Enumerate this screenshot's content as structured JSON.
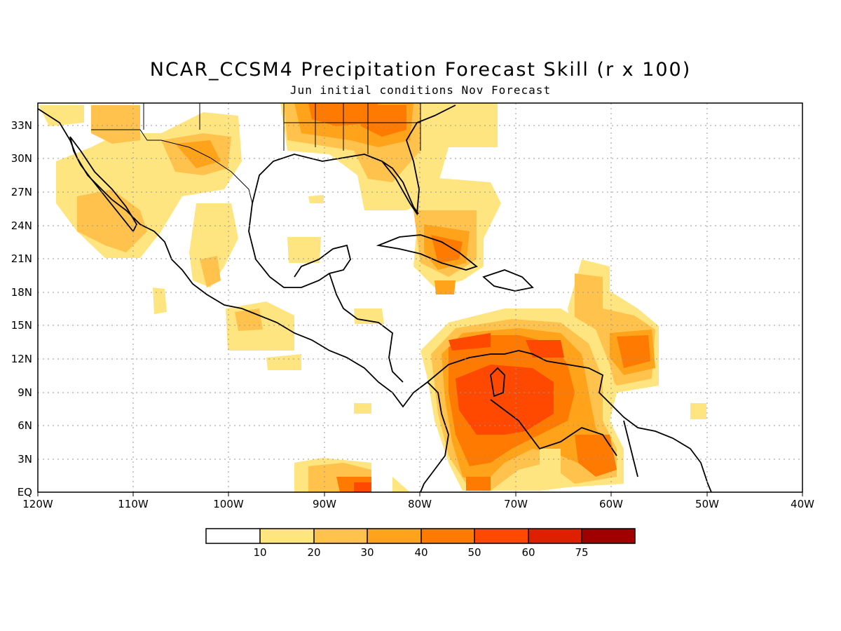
{
  "title": "NCAR_CCSM4 Precipitation Forecast Skill (r x 100)",
  "subtitle": "Jun initial conditions  Nov Forecast",
  "map": {
    "lon_ticks": [
      "120W",
      "110W",
      "100W",
      "90W",
      "80W",
      "70W",
      "60W",
      "50W",
      "40W"
    ],
    "lat_ticks": [
      "EQ",
      "3N",
      "6N",
      "9N",
      "12N",
      "15N",
      "18N",
      "21N",
      "24N",
      "27N",
      "30N",
      "33N"
    ],
    "lon_range": [
      -120,
      -40
    ],
    "lat_range": [
      0,
      35
    ],
    "grid": "dotted"
  },
  "colorbar": {
    "labels": [
      "10",
      "20",
      "30",
      "40",
      "50",
      "60",
      "75"
    ],
    "colors": [
      "#ffffff",
      "#ffe57f",
      "#ffc24d",
      "#ffa31a",
      "#ff7a00",
      "#ff4800",
      "#e01e00",
      "#a00000"
    ]
  }
}
